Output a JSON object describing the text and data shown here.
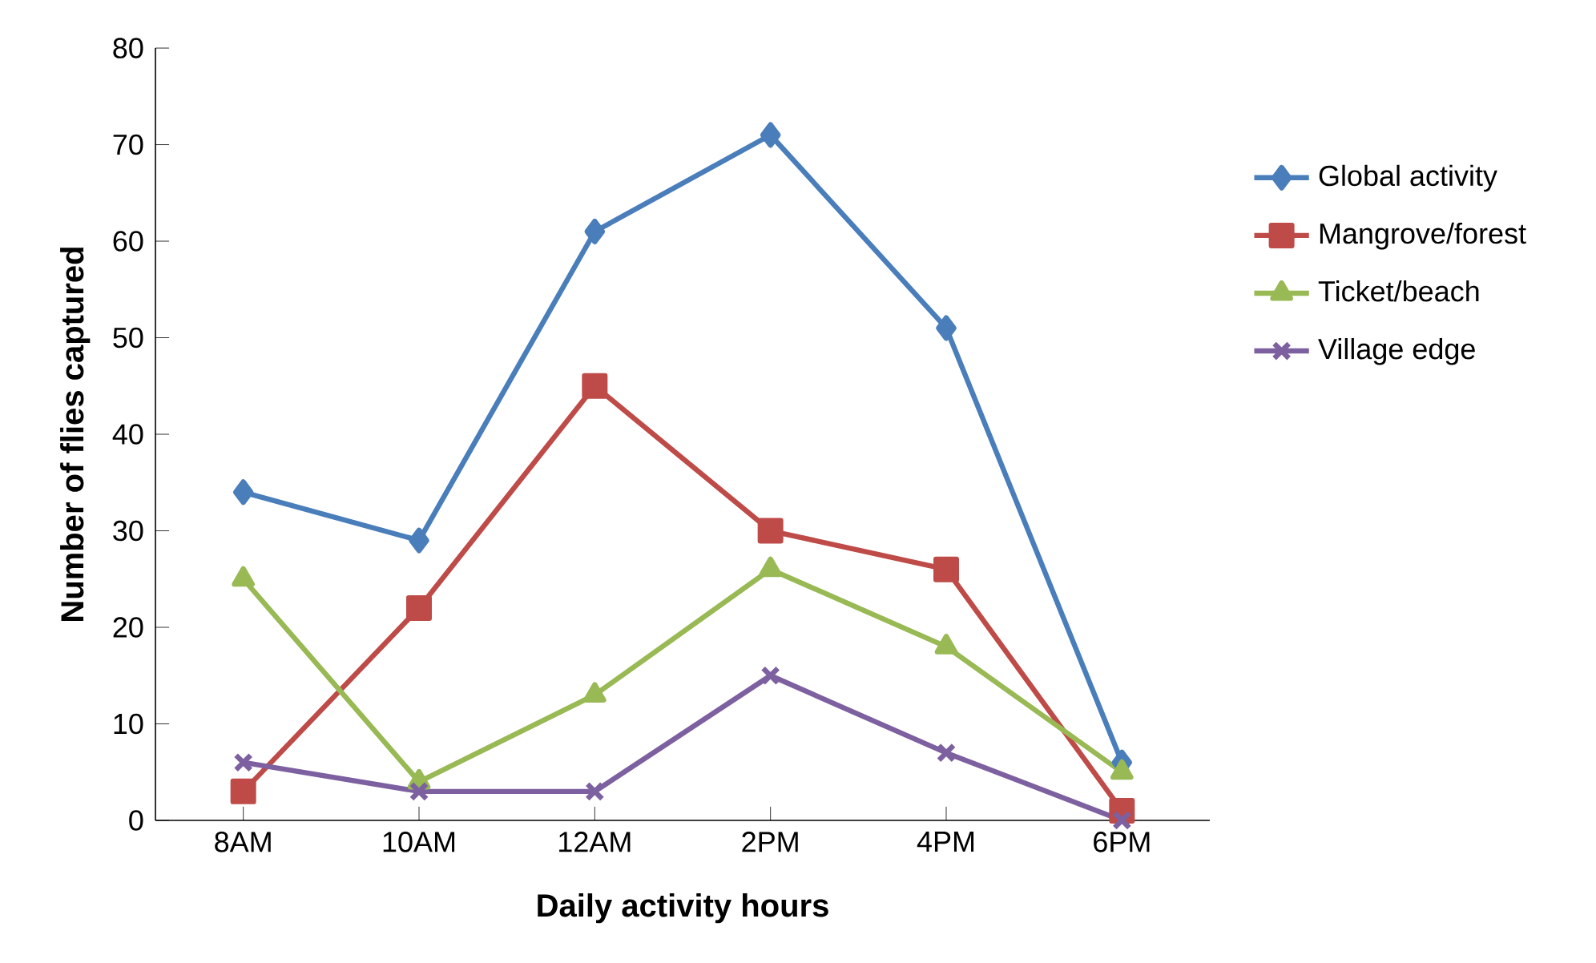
{
  "chart_data": {
    "type": "line",
    "xlabel": "Daily activity hours",
    "ylabel": "Number of flies captured",
    "categories": [
      "8AM",
      "10AM",
      "12AM",
      "2PM",
      "4PM",
      "6PM"
    ],
    "series": [
      {
        "name": "Global activity",
        "color": "#4a7ebb",
        "marker": "diamond",
        "values": [
          34,
          29,
          61,
          71,
          51,
          6
        ]
      },
      {
        "name": "Mangrove/forest",
        "color": "#be4b48",
        "marker": "square",
        "values": [
          3,
          22,
          45,
          30,
          26,
          1
        ]
      },
      {
        "name": "Ticket/beach",
        "color": "#98b954",
        "marker": "triangle",
        "values": [
          25,
          4,
          13,
          26,
          18,
          5
        ]
      },
      {
        "name": "Village edge",
        "color": "#7d60a0",
        "marker": "cross",
        "values": [
          6,
          3,
          3,
          15,
          7,
          0
        ]
      }
    ],
    "ylim": [
      0,
      80
    ],
    "yticks": [
      0,
      10,
      20,
      30,
      40,
      50,
      60,
      70,
      80
    ],
    "grid": false,
    "legend": "right",
    "line_style": "solid"
  }
}
